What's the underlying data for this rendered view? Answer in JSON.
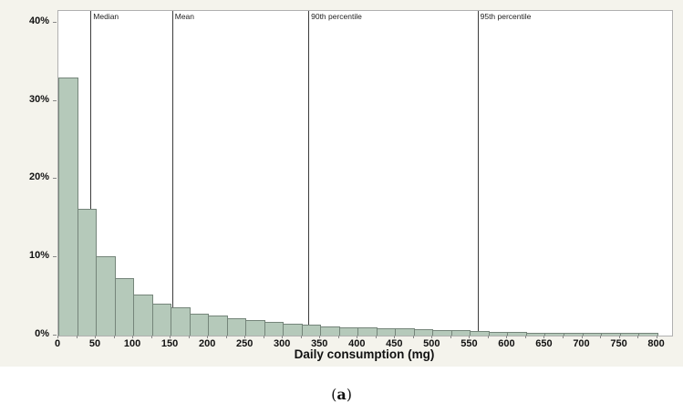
{
  "chart_data": {
    "type": "bar",
    "subtype": "histogram",
    "title": "",
    "xlabel": "Daily consumption (mg)",
    "ylabel": "",
    "bin_width_mg": 25,
    "bin_start_mg": 0,
    "categories_mg": [
      0,
      25,
      50,
      75,
      100,
      125,
      150,
      175,
      200,
      225,
      250,
      275,
      300,
      325,
      350,
      375,
      400,
      425,
      450,
      475,
      500,
      525,
      550,
      575,
      600,
      625,
      650,
      675,
      700,
      725,
      750,
      775
    ],
    "values_pct": [
      33.0,
      16.2,
      10.2,
      7.3,
      5.2,
      4.1,
      3.6,
      2.8,
      2.6,
      2.2,
      2.0,
      1.7,
      1.5,
      1.4,
      1.2,
      1.1,
      1.0,
      0.95,
      0.9,
      0.8,
      0.75,
      0.65,
      0.55,
      0.5,
      0.45,
      0.4,
      0.4,
      0.35,
      0.3,
      0.4,
      0.35,
      0.3
    ],
    "x_tick_values": [
      0,
      50,
      100,
      150,
      200,
      250,
      300,
      350,
      400,
      450,
      500,
      550,
      600,
      650,
      700,
      750,
      800
    ],
    "x_tick_labels": [
      "0",
      "50",
      "100",
      "150",
      "200",
      "250",
      "300",
      "350",
      "400",
      "450",
      "500",
      "550",
      "600",
      "650",
      "700",
      "750",
      "800"
    ],
    "x_minor_tick_step": 25,
    "y_tick_values": [
      0,
      10,
      20,
      30,
      40
    ],
    "y_tick_labels": [
      "0%",
      "10%",
      "20%",
      "30%",
      "40%"
    ],
    "xlim": [
      0,
      820
    ],
    "ylim": [
      0,
      41.5
    ],
    "grid": "off",
    "legend": "none",
    "reference_lines": [
      {
        "label": "Median",
        "x_mg": 43
      },
      {
        "label": "Mean",
        "x_mg": 152
      },
      {
        "label": "90th percentile",
        "x_mg": 334
      },
      {
        "label": "95th percentile",
        "x_mg": 560
      }
    ],
    "colors": {
      "figure_bg": "#f4f3ec",
      "plot_bg": "#ffffff",
      "plot_border": "#b0b0b0",
      "bar_fill": "#b5c9ba",
      "bar_border": "#75857a",
      "ref_line": "#3c3c3c",
      "text": "#111111"
    }
  },
  "caption": {
    "open": "(",
    "letter": "a",
    "close": ")"
  }
}
